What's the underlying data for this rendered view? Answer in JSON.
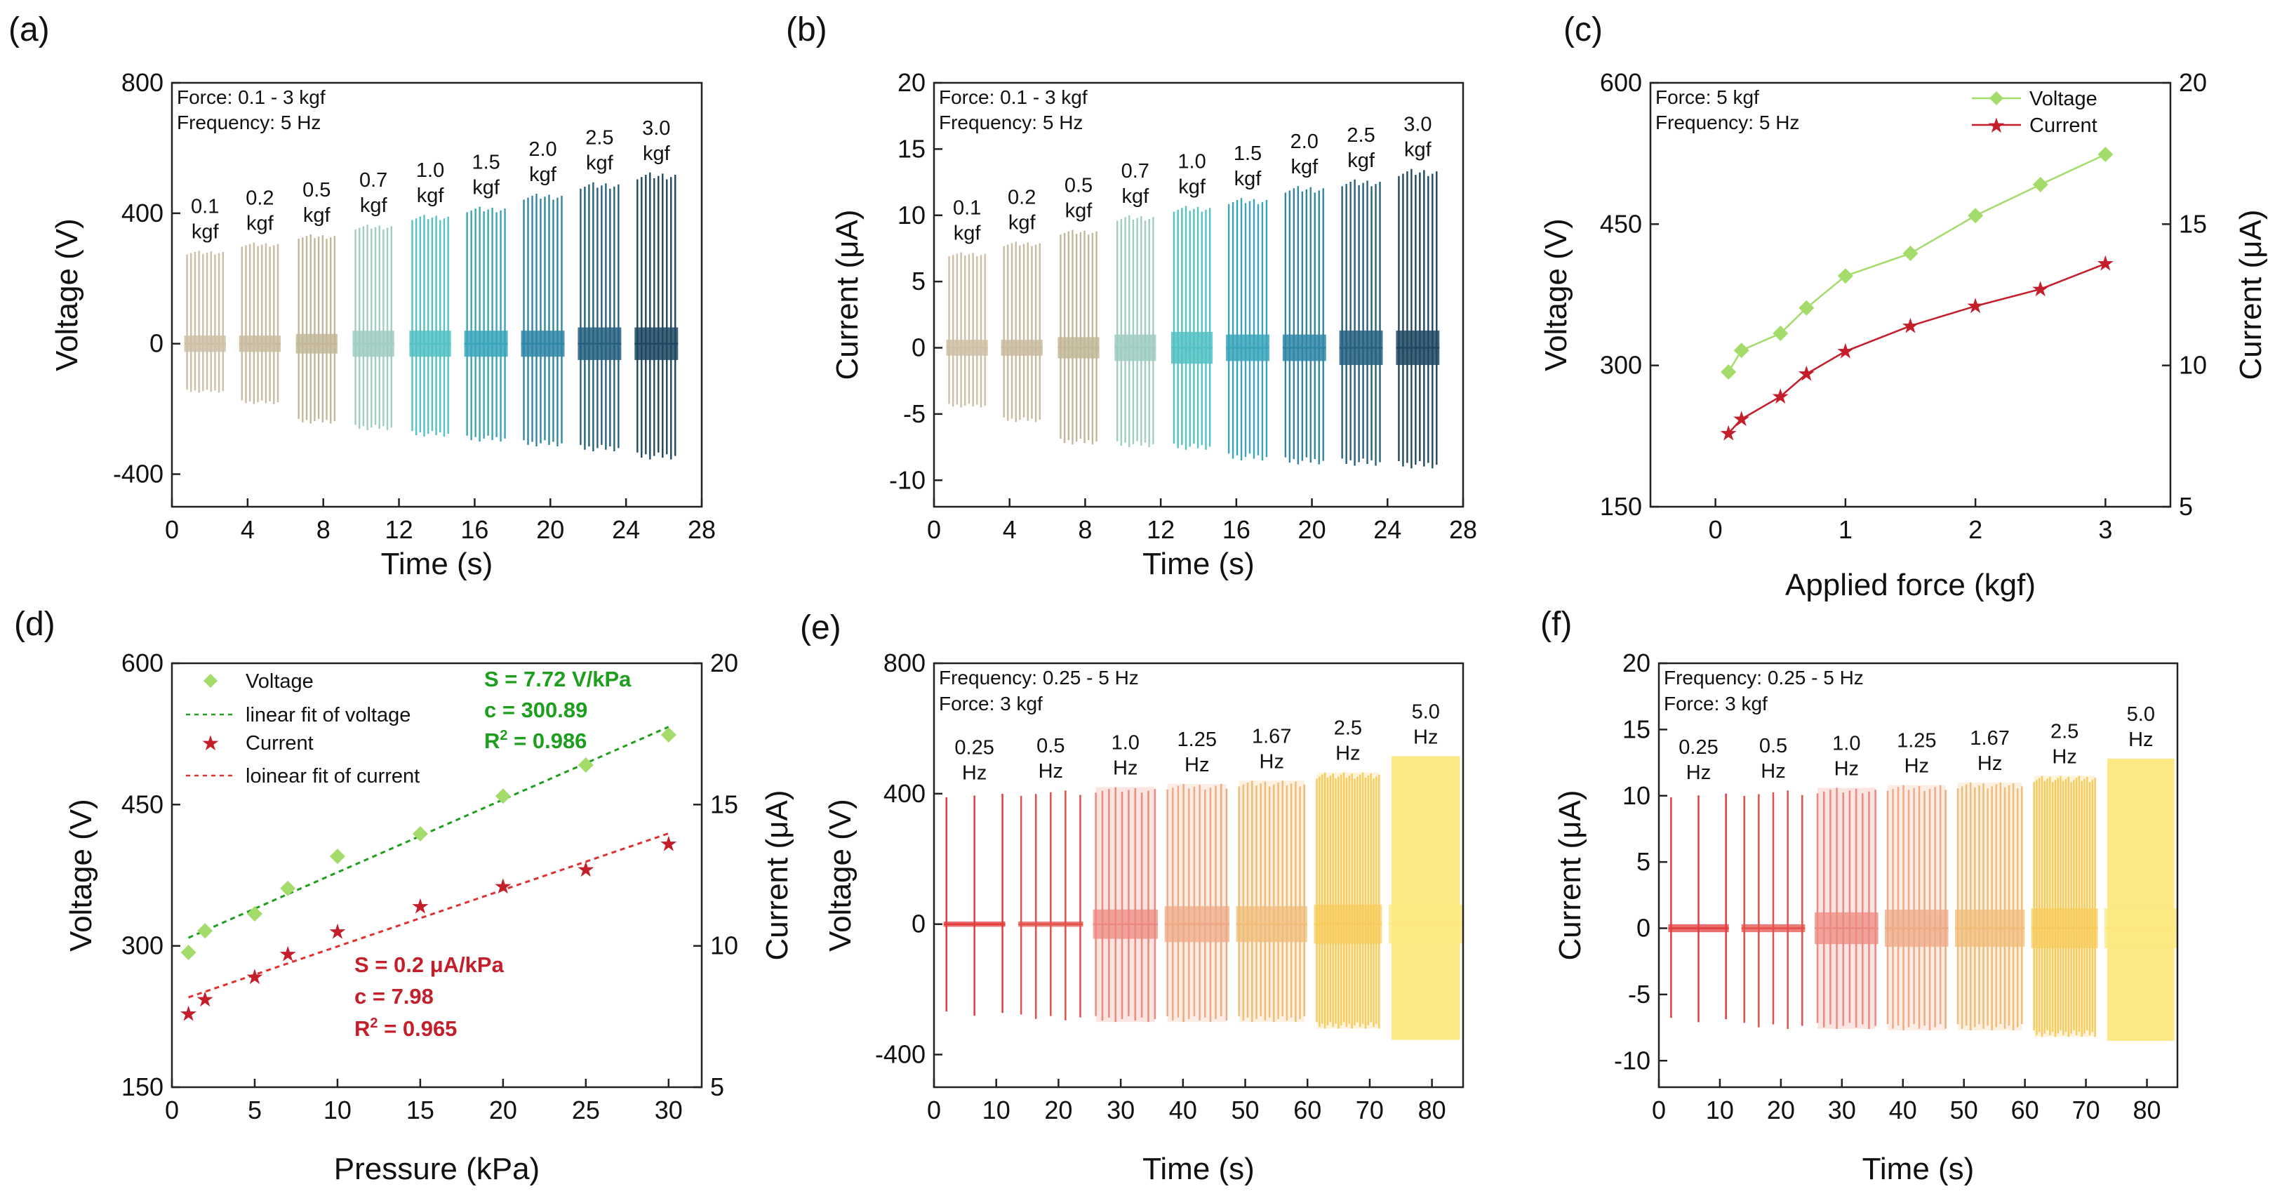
{
  "colors": {
    "force_ramp": [
      "#cdbfa6",
      "#c9bb9f",
      "#c2b798",
      "#9fcdc2",
      "#54c1c3",
      "#3aa5ba",
      "#2f86a6",
      "#26607f",
      "#1e4862"
    ],
    "voltage_green": "#a4dc6c",
    "fit_green": "#1e9e1e",
    "current_red": "#c41e2a",
    "fit_red": "#e23030",
    "freq_ramp": [
      "#e23c3c",
      "#e4504a",
      "#ec8a80",
      "#eeaa86",
      "#f0bc78",
      "#f7cc5c",
      "#fce87e"
    ]
  },
  "panels": [
    {
      "id": "a",
      "label": "(a)",
      "xlabel": "Time (s)",
      "ylabel": "Voltage (V)",
      "xlim": [
        0,
        28
      ],
      "ylim": [
        -500,
        800
      ],
      "xticks": [
        "0",
        "4",
        "8",
        "12",
        "16",
        "20",
        "24",
        "28"
      ],
      "yticks": [
        "-400",
        "0",
        "400",
        "800"
      ],
      "annotations": [
        "Force: 0.1 - 3 kgf",
        "Frequency: 5 Hz"
      ]
    },
    {
      "id": "b",
      "label": "(b)",
      "xlabel": "Time (s)",
      "ylabel": "Current (μA)",
      "xlim": [
        0,
        28
      ],
      "ylim": [
        -12,
        20
      ],
      "xticks": [
        "0",
        "4",
        "8",
        "12",
        "16",
        "20",
        "24",
        "28"
      ],
      "yticks": [
        "-10",
        "-5",
        "0",
        "5",
        "10",
        "15",
        "20"
      ],
      "annotations": [
        "Force: 0.1 - 3 kgf",
        "Frequency: 5 Hz"
      ]
    },
    {
      "id": "c",
      "label": "(c)",
      "xlabel": "Applied force (kgf)",
      "ylabel": "Voltage (V)",
      "y2label": "Current (μA)",
      "xlim": [
        -0.5,
        3.5
      ],
      "ylim": [
        150,
        600
      ],
      "y2lim": [
        5,
        20
      ],
      "xticks": [
        "0",
        "1",
        "2",
        "3"
      ],
      "yticks": [
        "150",
        "300",
        "450",
        "600"
      ],
      "y2ticks": [
        "5",
        "10",
        "15",
        "20"
      ],
      "annotations": [
        "Force: 5 kgf",
        "Frequency: 5 Hz"
      ],
      "legend": [
        "Voltage",
        "Current"
      ]
    },
    {
      "id": "d",
      "label": "(d)",
      "xlabel": "Pressure (kPa)",
      "ylabel": "Voltage (V)",
      "y2label": "Current (μA)",
      "xlim": [
        0,
        32
      ],
      "ylim": [
        150,
        600
      ],
      "y2lim": [
        5,
        20
      ],
      "xticks": [
        "0",
        "5",
        "10",
        "15",
        "20",
        "25",
        "30"
      ],
      "yticks": [
        "150",
        "300",
        "450",
        "600"
      ],
      "y2ticks": [
        "5",
        "10",
        "15",
        "20"
      ],
      "legend": [
        "Voltage",
        "linear fit of voltage",
        "Current",
        "loinear fit of current"
      ],
      "fit_voltage": [
        "S = 7.72 V/kPa",
        "c = 300.89",
        "R",
        "2",
        " = 0.986"
      ],
      "fit_current": [
        "S = 0.2 μA/kPa",
        "c = 7.98",
        "R",
        "2",
        " = 0.965"
      ]
    },
    {
      "id": "e",
      "label": "(e)",
      "xlabel": "Time (s)",
      "ylabel": "Voltage (V)",
      "xlim": [
        0,
        85
      ],
      "ylim": [
        -500,
        800
      ],
      "xticks": [
        "0",
        "10",
        "20",
        "30",
        "40",
        "50",
        "60",
        "70",
        "80"
      ],
      "yticks": [
        "-400",
        "0",
        "400",
        "800"
      ],
      "annotations": [
        "Frequency: 0.25 - 5 Hz",
        "Force: 3 kgf"
      ]
    },
    {
      "id": "f",
      "label": "(f)",
      "xlabel": "Time (s)",
      "ylabel": "Current (μA)",
      "xlim": [
        0,
        85
      ],
      "ylim": [
        -12,
        20
      ],
      "xticks": [
        "0",
        "10",
        "20",
        "30",
        "40",
        "50",
        "60",
        "70",
        "80"
      ],
      "yticks": [
        "-10",
        "-5",
        "0",
        "5",
        "10",
        "15",
        "20"
      ],
      "annotations": [
        "Frequency: 0.25 - 5 Hz",
        "Force: 3 kgf"
      ]
    }
  ],
  "chart_data": [
    {
      "panel": "a",
      "type": "line",
      "title": "",
      "xlabel": "Time (s)",
      "ylabel": "Voltage (V)",
      "xlim": [
        0,
        28
      ],
      "ylim": [
        -500,
        800
      ],
      "segments": [
        {
          "label": [
            "0.1",
            "kgf"
          ],
          "x_start": 0.8,
          "x_end": 2.7,
          "max": 285,
          "min": -150,
          "band": 25
        },
        {
          "label": [
            "0.2",
            "kgf"
          ],
          "x_start": 3.7,
          "x_end": 5.6,
          "max": 310,
          "min": -185,
          "band": 25
        },
        {
          "label": [
            "0.5",
            "kgf"
          ],
          "x_start": 6.7,
          "x_end": 8.6,
          "max": 335,
          "min": -245,
          "band": 30
        },
        {
          "label": [
            "0.7",
            "kgf"
          ],
          "x_start": 9.7,
          "x_end": 11.6,
          "max": 365,
          "min": -265,
          "band": 40
        },
        {
          "label": [
            "1.0",
            "kgf"
          ],
          "x_start": 12.7,
          "x_end": 14.6,
          "max": 395,
          "min": -285,
          "band": 40
        },
        {
          "label": [
            "1.5",
            "kgf"
          ],
          "x_start": 15.6,
          "x_end": 17.6,
          "max": 420,
          "min": -300,
          "band": 40
        },
        {
          "label": [
            "2.0",
            "kgf"
          ],
          "x_start": 18.6,
          "x_end": 20.6,
          "max": 460,
          "min": -315,
          "band": 40
        },
        {
          "label": [
            "2.5",
            "kgf"
          ],
          "x_start": 21.6,
          "x_end": 23.6,
          "max": 495,
          "min": -330,
          "band": 50
        },
        {
          "label": [
            "3.0",
            "kgf"
          ],
          "x_start": 24.6,
          "x_end": 26.6,
          "max": 525,
          "min": -355,
          "band": 50
        }
      ]
    },
    {
      "panel": "b",
      "type": "line",
      "title": "",
      "xlabel": "Time (s)",
      "ylabel": "Current (μA)",
      "xlim": [
        0,
        28
      ],
      "ylim": [
        -12,
        20
      ],
      "segments": [
        {
          "label": [
            "0.1",
            "kgf"
          ],
          "x_start": 0.8,
          "x_end": 2.7,
          "max": 7.2,
          "min": -4.5,
          "band": 0.6
        },
        {
          "label": [
            "0.2",
            "kgf"
          ],
          "x_start": 3.7,
          "x_end": 5.6,
          "max": 8.0,
          "min": -5.6,
          "band": 0.6
        },
        {
          "label": [
            "0.5",
            "kgf"
          ],
          "x_start": 6.7,
          "x_end": 8.6,
          "max": 8.9,
          "min": -7.3,
          "band": 0.8
        },
        {
          "label": [
            "0.7",
            "kgf"
          ],
          "x_start": 9.7,
          "x_end": 11.6,
          "max": 10.0,
          "min": -7.5,
          "band": 1.0
        },
        {
          "label": [
            "1.0",
            "kgf"
          ],
          "x_start": 12.7,
          "x_end": 14.6,
          "max": 10.7,
          "min": -7.7,
          "band": 1.2
        },
        {
          "label": [
            "1.5",
            "kgf"
          ],
          "x_start": 15.6,
          "x_end": 17.6,
          "max": 11.3,
          "min": -8.5,
          "band": 1.0
        },
        {
          "label": [
            "2.0",
            "kgf"
          ],
          "x_start": 18.6,
          "x_end": 20.6,
          "max": 12.2,
          "min": -8.8,
          "band": 1.0
        },
        {
          "label": [
            "2.5",
            "kgf"
          ],
          "x_start": 21.6,
          "x_end": 23.6,
          "max": 12.7,
          "min": -8.9,
          "band": 1.3
        },
        {
          "label": [
            "3.0",
            "kgf"
          ],
          "x_start": 24.6,
          "x_end": 26.6,
          "max": 13.5,
          "min": -9.1,
          "band": 1.3
        }
      ]
    },
    {
      "panel": "c",
      "type": "line",
      "title": "",
      "xlabel": "Applied force (kgf)",
      "ylabel": "Voltage (V)",
      "y2label": "Current (μA)",
      "x": [
        0.1,
        0.2,
        0.5,
        0.7,
        1.0,
        1.5,
        2.0,
        2.5,
        3.0
      ],
      "series": [
        {
          "name": "Voltage",
          "axis": "left",
          "values": [
            293,
            316,
            334,
            361,
            395,
            419,
            459,
            492,
            524
          ]
        },
        {
          "name": "Current",
          "axis": "right",
          "values": [
            7.6,
            8.1,
            8.9,
            9.7,
            10.5,
            11.4,
            12.1,
            12.7,
            13.6
          ]
        }
      ],
      "xlim": [
        -0.5,
        3.5
      ],
      "ylim": [
        150,
        600
      ],
      "y2lim": [
        5,
        20
      ]
    },
    {
      "panel": "d",
      "type": "scatter",
      "title": "",
      "xlabel": "Pressure (kPa)",
      "ylabel": "Voltage (V)",
      "y2label": "Current (μA)",
      "x": [
        1,
        2,
        5,
        7,
        10,
        15,
        20,
        25,
        30
      ],
      "series": [
        {
          "name": "Voltage",
          "axis": "left",
          "values": [
            293,
            316,
            334,
            361,
            395,
            419,
            459,
            492,
            524
          ]
        },
        {
          "name": "Current",
          "axis": "right",
          "values": [
            7.6,
            8.1,
            8.9,
            9.7,
            10.5,
            11.4,
            12.1,
            12.7,
            13.6
          ]
        }
      ],
      "fits": [
        {
          "name": "linear fit of voltage",
          "axis": "left",
          "x": [
            1,
            30
          ],
          "y": [
            308.6,
            532.5
          ]
        },
        {
          "name": "loinear fit of current",
          "axis": "right",
          "x": [
            1,
            30
          ],
          "y": [
            8.18,
            13.98
          ]
        }
      ],
      "xlim": [
        0,
        32
      ],
      "ylim": [
        150,
        600
      ],
      "y2lim": [
        5,
        20
      ]
    },
    {
      "panel": "e",
      "type": "line",
      "title": "",
      "xlabel": "Time (s)",
      "ylabel": "Voltage (V)",
      "xlim": [
        0,
        85
      ],
      "ylim": [
        -500,
        800
      ],
      "segments": [
        {
          "label": [
            "0.25",
            "Hz"
          ],
          "x_start": 2,
          "x_end": 11,
          "max": 405,
          "min": -285,
          "band": 8,
          "count": 3
        },
        {
          "label": [
            "0.5",
            "Hz"
          ],
          "x_start": 14,
          "x_end": 23.5,
          "max": 410,
          "min": -295,
          "band": 8,
          "count": 5
        },
        {
          "label": [
            "1.0",
            "Hz"
          ],
          "x_start": 26,
          "x_end": 35.5,
          "max": 420,
          "min": -300,
          "band": 45,
          "count": 10
        },
        {
          "label": [
            "1.25",
            "Hz"
          ],
          "x_start": 37.5,
          "x_end": 47,
          "max": 430,
          "min": -300,
          "band": 55,
          "count": 12
        },
        {
          "label": [
            "1.67",
            "Hz"
          ],
          "x_start": 49,
          "x_end": 59.5,
          "max": 440,
          "min": -300,
          "band": 55,
          "count": 16
        },
        {
          "label": [
            "2.5",
            "Hz"
          ],
          "x_start": 61.5,
          "x_end": 71.5,
          "max": 465,
          "min": -320,
          "band": 60,
          "count": 24
        },
        {
          "label": [
            "5.0",
            "Hz"
          ],
          "x_start": 73.5,
          "x_end": 84.5,
          "max": 515,
          "min": -355,
          "band": 60,
          "count": 0
        }
      ]
    },
    {
      "panel": "f",
      "type": "line",
      "title": "",
      "xlabel": "Time (s)",
      "ylabel": "Current (μA)",
      "xlim": [
        0,
        85
      ],
      "ylim": [
        -12,
        20
      ],
      "segments": [
        {
          "label": [
            "0.25",
            "Hz"
          ],
          "x_start": 2,
          "x_end": 11,
          "max": 10.3,
          "min": -7.2,
          "band": 0.3,
          "count": 3
        },
        {
          "label": [
            "0.5",
            "Hz"
          ],
          "x_start": 14,
          "x_end": 23.5,
          "max": 10.4,
          "min": -7.6,
          "band": 0.3,
          "count": 5
        },
        {
          "label": [
            "1.0",
            "Hz"
          ],
          "x_start": 26,
          "x_end": 35.5,
          "max": 10.6,
          "min": -7.6,
          "band": 1.2,
          "count": 10
        },
        {
          "label": [
            "1.25",
            "Hz"
          ],
          "x_start": 37.5,
          "x_end": 47,
          "max": 10.8,
          "min": -7.7,
          "band": 1.4,
          "count": 12
        },
        {
          "label": [
            "1.67",
            "Hz"
          ],
          "x_start": 49,
          "x_end": 59.5,
          "max": 11.0,
          "min": -7.7,
          "band": 1.4,
          "count": 16
        },
        {
          "label": [
            "2.5",
            "Hz"
          ],
          "x_start": 61.5,
          "x_end": 71.5,
          "max": 11.5,
          "min": -8.2,
          "band": 1.5,
          "count": 24
        },
        {
          "label": [
            "5.0",
            "Hz"
          ],
          "x_start": 73.5,
          "x_end": 84.5,
          "max": 12.8,
          "min": -8.5,
          "band": 1.5,
          "count": 0
        }
      ]
    }
  ]
}
